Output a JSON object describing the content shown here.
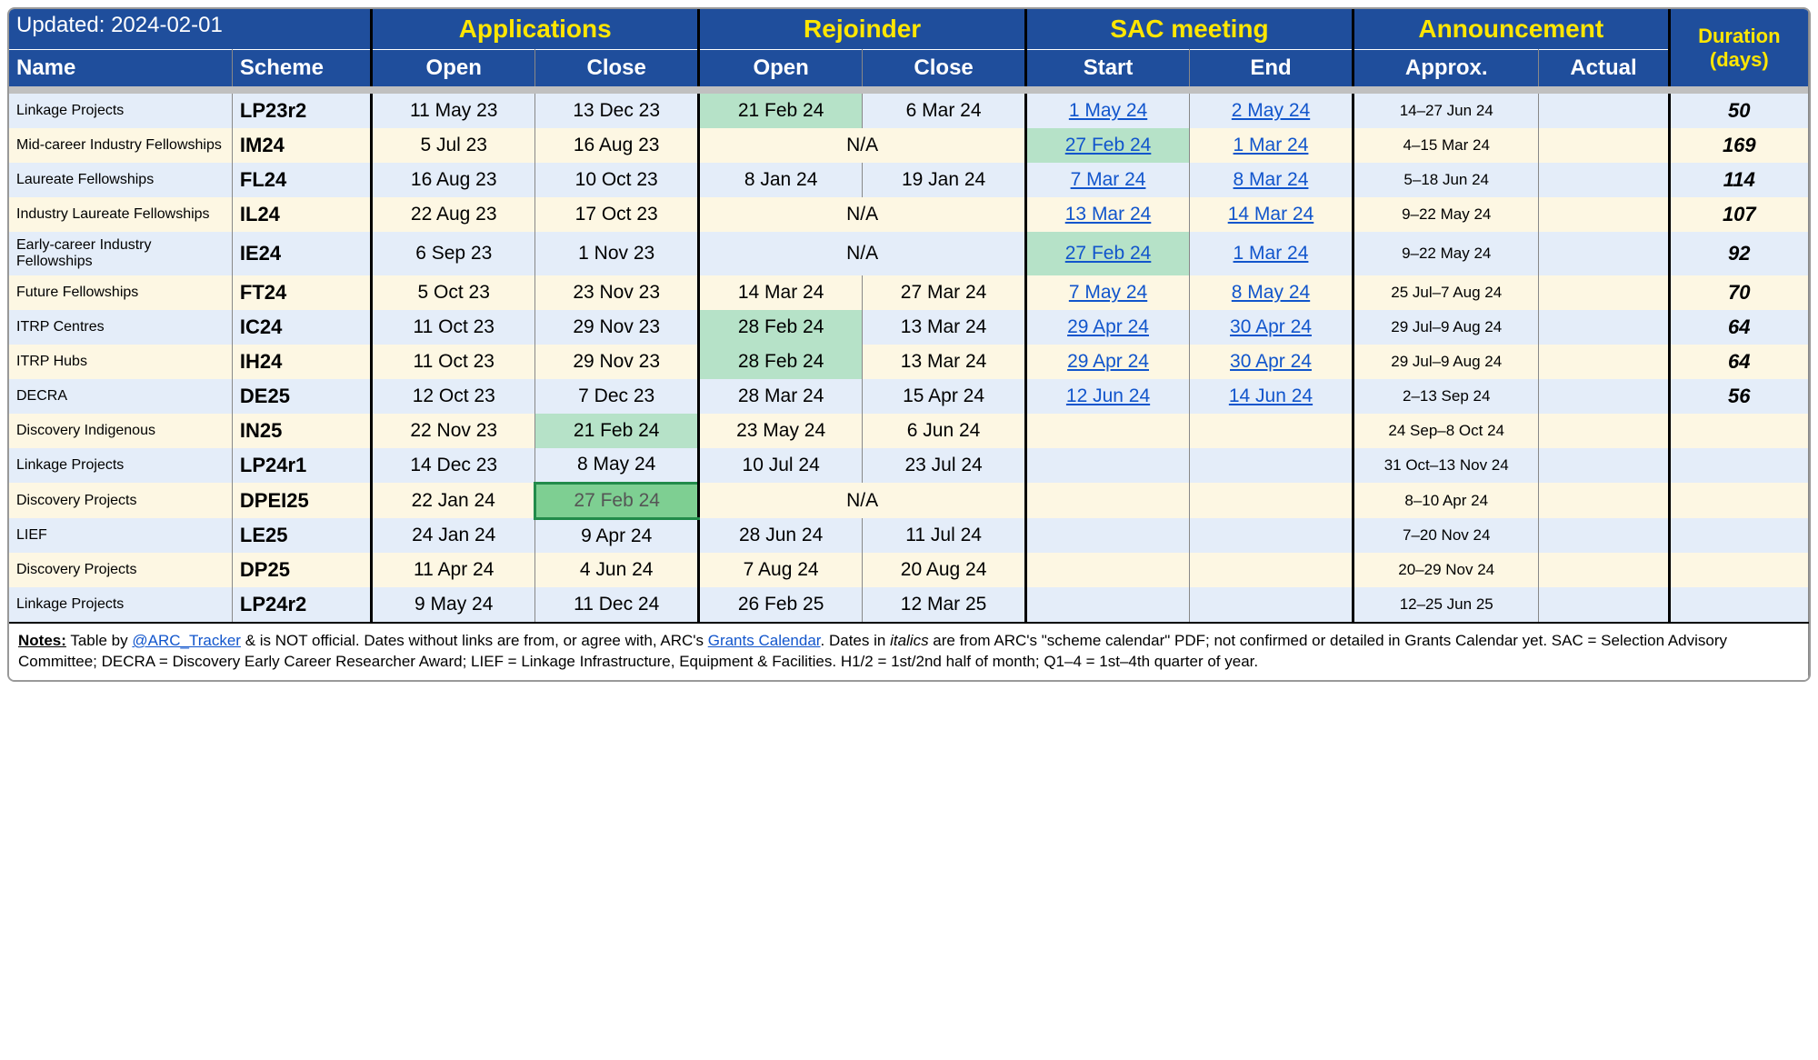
{
  "header": {
    "updated": "Updated: 2024-02-01",
    "groups": {
      "applications": "Applications",
      "rejoinder": "Rejoinder",
      "sac": "SAC meeting",
      "announcement": "Announcement",
      "duration": "Duration (days)"
    },
    "cols": {
      "name": "Name",
      "scheme": "Scheme",
      "open": "Open",
      "close": "Close",
      "start": "Start",
      "end": "End",
      "approx": "Approx.",
      "actual": "Actual"
    }
  },
  "rows": [
    {
      "name": "Linkage Projects",
      "scheme": "LP23r2",
      "app_open": "11 May 23",
      "app_close": "13 Dec 23",
      "rej_open": "21 Feb 24",
      "rej_open_hl": "light",
      "rej_close": "6 Mar 24",
      "sac_start": "1 May 24",
      "sac_start_link": true,
      "sac_end": "2 May 24",
      "sac_end_link": true,
      "approx": "14–27 Jun 24",
      "actual": "",
      "dur": "50"
    },
    {
      "name": "Mid-career Industry Fellowships",
      "scheme": "IM24",
      "app_open": "5 Jul 23",
      "app_close": "16 Aug 23",
      "rej_na": "N/A",
      "sac_start": "27 Feb 24",
      "sac_start_link": true,
      "sac_start_hl": "light",
      "sac_end": "1 Mar 24",
      "sac_end_link": true,
      "approx": "4–15 Mar 24",
      "actual": "",
      "dur": "169"
    },
    {
      "name": "Laureate Fellowships",
      "scheme": "FL24",
      "app_open": "16 Aug 23",
      "app_close": "10 Oct 23",
      "rej_open": "8 Jan 24",
      "rej_close": "19 Jan 24",
      "sac_start": "7 Mar 24",
      "sac_start_link": true,
      "sac_end": "8 Mar 24",
      "sac_end_link": true,
      "approx": "5–18 Jun 24",
      "actual": "",
      "dur": "114"
    },
    {
      "name": "Industry Laureate Fellowships",
      "scheme": "IL24",
      "app_open": "22 Aug 23",
      "app_close": "17 Oct 23",
      "rej_na": "N/A",
      "sac_start": "13 Mar 24",
      "sac_start_link": true,
      "sac_end": "14 Mar 24",
      "sac_end_link": true,
      "approx": "9–22 May 24",
      "actual": "",
      "dur": "107"
    },
    {
      "name": "Early-career Industry Fellowships",
      "scheme": "IE24",
      "app_open": "6 Sep 23",
      "app_close": "1 Nov 23",
      "rej_na": "N/A",
      "sac_start": "27 Feb 24",
      "sac_start_link": true,
      "sac_start_hl": "light",
      "sac_end": "1 Mar 24",
      "sac_end_link": true,
      "approx": "9–22 May 24",
      "actual": "",
      "dur": "92"
    },
    {
      "name": "Future Fellowships",
      "scheme": "FT24",
      "app_open": "5 Oct 23",
      "app_close": "23 Nov 23",
      "rej_open": "14 Mar 24",
      "rej_close": "27 Mar 24",
      "sac_start": "7 May 24",
      "sac_start_link": true,
      "sac_end": "8 May 24",
      "sac_end_link": true,
      "approx": "25 Jul–7 Aug 24",
      "actual": "",
      "dur": "70"
    },
    {
      "name": "ITRP Centres",
      "scheme": "IC24",
      "app_open": "11 Oct 23",
      "app_close": "29 Nov 23",
      "rej_open": "28 Feb 24",
      "rej_open_hl": "light",
      "rej_close": "13 Mar 24",
      "sac_start": "29 Apr 24",
      "sac_start_link": true,
      "sac_end": "30 Apr 24",
      "sac_end_link": true,
      "approx": "29 Jul–9 Aug 24",
      "actual": "",
      "dur": "64"
    },
    {
      "name": "ITRP Hubs",
      "scheme": "IH24",
      "app_open": "11 Oct 23",
      "app_close": "29 Nov 23",
      "rej_open": "28 Feb 24",
      "rej_open_hl": "light",
      "rej_close": "13 Mar 24",
      "sac_start": "29 Apr 24",
      "sac_start_link": true,
      "sac_end": "30 Apr 24",
      "sac_end_link": true,
      "approx": "29 Jul–9 Aug 24",
      "actual": "",
      "dur": "64"
    },
    {
      "name": "DECRA",
      "scheme": "DE25",
      "app_open": "12 Oct 23",
      "app_close": "7 Dec 23",
      "rej_open": "28 Mar 24",
      "rej_close": "15 Apr 24",
      "sac_start": "12 Jun 24",
      "sac_start_link": true,
      "sac_end": "14 Jun 24",
      "sac_end_link": true,
      "approx": "2–13 Sep 24",
      "actual": "",
      "dur": "56"
    },
    {
      "name": "Discovery Indigenous",
      "scheme": "IN25",
      "app_open": "22 Nov 23",
      "app_close": "21 Feb 24",
      "app_close_hl": "light",
      "rej_open": "23 May 24",
      "rej_close": "6 Jun 24",
      "sac_start": "",
      "sac_end": "",
      "approx": "24 Sep–8 Oct 24",
      "actual": "",
      "dur": ""
    },
    {
      "name": "Linkage Projects",
      "scheme": "LP24r1",
      "app_open": "14 Dec 23",
      "app_close": "8 May 24",
      "rej_open": "10 Jul 24",
      "rej_close": "23 Jul 24",
      "sac_start": "",
      "sac_end": "",
      "approx": "31 Oct–13 Nov 24",
      "actual": "",
      "dur": ""
    },
    {
      "name": "Discovery Projects",
      "scheme": "DPEI25",
      "app_open": "22 Jan 24",
      "app_close": "27 Feb 24",
      "app_close_hl": "dark",
      "rej_na": "N/A",
      "sac_start": "",
      "sac_end": "",
      "approx": "8–10 Apr 24",
      "actual": "",
      "dur": ""
    },
    {
      "name": "LIEF",
      "scheme": "LE25",
      "app_open": "24 Jan 24",
      "app_close": "9 Apr 24",
      "rej_open": "28 Jun 24",
      "rej_close": "11 Jul 24",
      "sac_start": "",
      "sac_end": "",
      "approx": "7–20 Nov 24",
      "actual": "",
      "dur": ""
    },
    {
      "name": "Discovery Projects",
      "scheme": "DP25",
      "app_open": "11 Apr 24",
      "app_close": "4 Jun 24",
      "rej_open": "7 Aug 24",
      "rej_close": "20 Aug 24",
      "sac_start": "",
      "sac_end": "",
      "approx": "20–29 Nov 24",
      "actual": "",
      "dur": ""
    },
    {
      "name": "Linkage Projects",
      "scheme": "LP24r2",
      "app_open": "9 May 24",
      "app_close": "11 Dec 24",
      "rej_open": "26 Feb 25",
      "rej_close": "12 Mar 25",
      "sac_start": "",
      "sac_end": "",
      "approx": "12–25 Jun 25",
      "actual": "",
      "dur": ""
    }
  ],
  "notes": {
    "label": "Notes:",
    "text1": " Table by ",
    "link1": "@ARC_Tracker",
    "text2": " & is NOT official. Dates without links are from, or agree with, ARC's ",
    "link2": "Grants Calendar",
    "text3": ". Dates in ",
    "italics": "italics",
    "text4": " are from ARC's \"scheme calendar\" PDF; not confirmed or detailed in Grants Calendar yet. SAC = Selection Advisory Committee; DECRA = Discovery Early Career Researcher Award; LIEF = Linkage Infrastructure, Equipment & Facilities. H1/2 = 1st/2nd half of month; Q1–4 = 1st–4th quarter of year."
  },
  "style": {
    "header_bg": "#1f4e9c",
    "header_group_color": "#ffe600",
    "row_even_bg": "#e4edf9",
    "row_odd_bg": "#fdf7e3",
    "link_color": "#1155cc",
    "highlight_light": "#b6e2c8",
    "highlight_dark": "#7ecf92",
    "highlight_border": "#228b4a"
  }
}
